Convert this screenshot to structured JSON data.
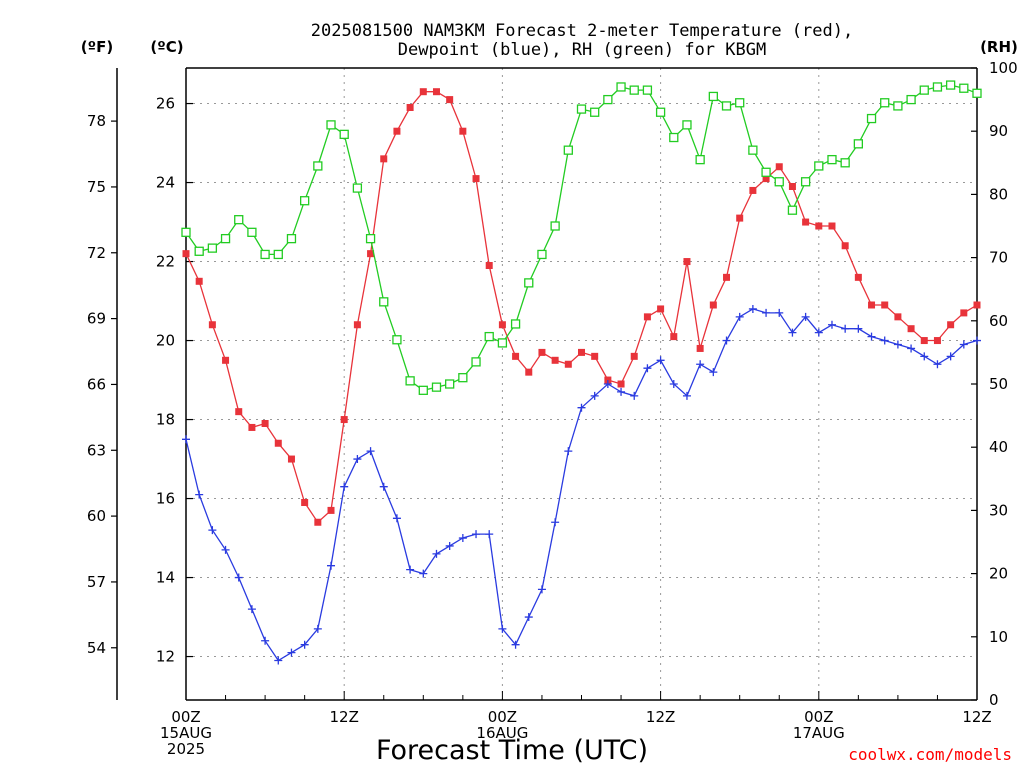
{
  "chart_data": {
    "type": "line",
    "title_lines": [
      "2025081500 NAM3KM Forecast 2-meter Temperature (red),",
      "Dewpoint (blue), RH (green) for KBGM"
    ],
    "xlabel": "Forecast Time (UTC)",
    "credit": "coolwx.com/models",
    "units": {
      "fahrenheit": "(ºF)",
      "celsius": "(ºC)",
      "rh": "(RH)"
    },
    "x_range_hours": [
      0,
      60
    ],
    "x_ticks": [
      {
        "hour": 0,
        "lines": [
          "00Z",
          "15AUG",
          "2025"
        ]
      },
      {
        "hour": 12,
        "lines": [
          "12Z"
        ]
      },
      {
        "hour": 24,
        "lines": [
          "00Z",
          "16AUG"
        ]
      },
      {
        "hour": 36,
        "lines": [
          "12Z"
        ]
      },
      {
        "hour": 48,
        "lines": [
          "00Z",
          "17AUG"
        ]
      },
      {
        "hour": 60,
        "lines": [
          "12Z"
        ]
      }
    ],
    "celsius_axis": {
      "range": [
        10.9,
        26.9
      ],
      "ticks": [
        "12",
        "14",
        "16",
        "18",
        "20",
        "22",
        "24",
        "26"
      ]
    },
    "fahrenheit_axis": {
      "ticks": [
        "54",
        "57",
        "60",
        "63",
        "66",
        "69",
        "72",
        "75",
        "78"
      ]
    },
    "rh_axis": {
      "range": [
        0,
        100
      ],
      "ticks": [
        "0",
        "10",
        "20",
        "30",
        "40",
        "50",
        "60",
        "70",
        "80",
        "90",
        "100"
      ]
    },
    "series": [
      {
        "name": "Temperature",
        "unit": "C",
        "color": "#e8333a",
        "marker": "filled-square",
        "x": [
          0,
          1,
          2,
          3,
          4,
          5,
          6,
          7,
          8,
          9,
          10,
          11,
          12,
          13,
          14,
          15,
          16,
          17,
          18,
          19,
          20,
          21,
          22,
          23,
          24,
          25,
          26,
          27,
          28,
          29,
          30,
          31,
          32,
          33,
          34,
          35,
          36,
          37,
          38,
          39,
          40,
          41,
          42,
          43,
          44,
          45,
          46,
          47,
          48,
          49,
          50,
          51,
          52,
          53,
          54,
          55,
          56,
          57,
          58,
          59,
          60
        ],
        "values": [
          22.2,
          21.5,
          20.4,
          19.5,
          18.2,
          17.8,
          17.9,
          17.4,
          17.0,
          15.9,
          15.4,
          15.7,
          18.0,
          20.4,
          22.2,
          24.6,
          25.3,
          25.9,
          26.3,
          26.3,
          26.1,
          25.3,
          24.1,
          21.9,
          20.4,
          19.6,
          19.2,
          19.7,
          19.5,
          19.4,
          19.7,
          19.6,
          19.0,
          18.9,
          19.6,
          20.6,
          20.8,
          20.1,
          22.0,
          19.8,
          20.9,
          21.6,
          23.1,
          23.8,
          24.1,
          24.4,
          23.9,
          23.0,
          22.9,
          22.9,
          22.4,
          21.6,
          20.9,
          20.9,
          20.6,
          20.3,
          20.0,
          20.0,
          20.4,
          20.7,
          20.9
        ]
      },
      {
        "name": "Dewpoint",
        "unit": "C",
        "color": "#2a3be0",
        "marker": "plus",
        "x": [
          0,
          1,
          2,
          3,
          4,
          5,
          6,
          7,
          8,
          9,
          10,
          11,
          12,
          13,
          14,
          15,
          16,
          17,
          18,
          19,
          20,
          21,
          22,
          23,
          24,
          25,
          26,
          27,
          28,
          29,
          30,
          31,
          32,
          33,
          34,
          35,
          36,
          37,
          38,
          39,
          40,
          41,
          42,
          43,
          44,
          45,
          46,
          47,
          48,
          49,
          50,
          51,
          52,
          53,
          54,
          55,
          56,
          57,
          58,
          59,
          60
        ],
        "values": [
          17.5,
          16.1,
          15.2,
          14.7,
          14.0,
          13.2,
          12.4,
          11.9,
          12.1,
          12.3,
          12.7,
          14.3,
          16.3,
          17.0,
          17.2,
          16.3,
          15.5,
          14.2,
          14.1,
          14.6,
          14.8,
          15.0,
          15.1,
          15.1,
          12.7,
          12.3,
          13.0,
          13.7,
          15.4,
          17.2,
          18.3,
          18.6,
          18.9,
          18.7,
          18.6,
          19.3,
          19.5,
          18.9,
          18.6,
          19.4,
          19.2,
          20.0,
          20.6,
          20.8,
          20.7,
          20.7,
          20.2,
          20.6,
          20.2,
          20.4,
          20.3,
          20.3,
          20.1,
          20.0,
          19.9,
          19.8,
          19.6,
          19.4,
          19.6,
          19.9,
          20.0
        ]
      },
      {
        "name": "RH",
        "unit": "%",
        "color": "#22cc22",
        "marker": "open-square",
        "x": [
          0,
          1,
          2,
          3,
          4,
          5,
          6,
          7,
          8,
          9,
          10,
          11,
          12,
          13,
          14,
          15,
          16,
          17,
          18,
          19,
          20,
          21,
          22,
          23,
          24,
          25,
          26,
          27,
          28,
          29,
          30,
          31,
          32,
          33,
          34,
          35,
          36,
          37,
          38,
          39,
          40,
          41,
          42,
          43,
          44,
          45,
          46,
          47,
          48,
          49,
          50,
          51,
          52,
          53,
          54,
          55,
          56,
          57,
          58,
          59,
          60
        ],
        "values": [
          74,
          71,
          71.5,
          73,
          76,
          74,
          70.5,
          70.5,
          73,
          79,
          84.5,
          91,
          89.5,
          81,
          73,
          63,
          57,
          50.5,
          49,
          49.5,
          50,
          51,
          53.5,
          57.5,
          56.5,
          59.5,
          66,
          70.5,
          75,
          87,
          93.5,
          93,
          95,
          97,
          96.5,
          96.5,
          93,
          89,
          91,
          85.5,
          95.5,
          94,
          94.5,
          87,
          83.5,
          82,
          77.5,
          82,
          84.5,
          85.5,
          85,
          88,
          92,
          94.5,
          94,
          95,
          96.5,
          97,
          97.3,
          96.8,
          96
        ]
      }
    ]
  }
}
